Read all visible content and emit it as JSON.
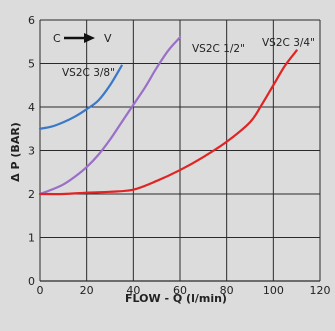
{
  "chart_data": {
    "type": "line",
    "title": "",
    "xlabel": "FLOW - Q (l/min)",
    "ylabel": "Δ P (BAR)",
    "xlim": [
      0,
      120
    ],
    "ylim": [
      0,
      6
    ],
    "xticks": [
      0,
      20,
      40,
      60,
      80,
      100,
      120
    ],
    "yticks": [
      0,
      1,
      2,
      3,
      4,
      5,
      6
    ],
    "grid": true,
    "annotation": {
      "from": "C",
      "to": "V"
    },
    "series": [
      {
        "name": "VS2C 3/8\"",
        "color": "#3a78c9",
        "points": [
          [
            0,
            3.5
          ],
          [
            5,
            3.55
          ],
          [
            10,
            3.65
          ],
          [
            15,
            3.78
          ],
          [
            20,
            3.95
          ],
          [
            25,
            4.15
          ],
          [
            30,
            4.5
          ],
          [
            35,
            4.95
          ]
        ]
      },
      {
        "name": "VS2C 1/2\"",
        "color": "#9a6fc8",
        "points": [
          [
            0,
            2.0
          ],
          [
            5,
            2.1
          ],
          [
            10,
            2.22
          ],
          [
            15,
            2.4
          ],
          [
            20,
            2.62
          ],
          [
            25,
            2.9
          ],
          [
            30,
            3.25
          ],
          [
            35,
            3.65
          ],
          [
            40,
            4.05
          ],
          [
            45,
            4.45
          ],
          [
            50,
            4.9
          ],
          [
            55,
            5.3
          ],
          [
            60,
            5.6
          ]
        ]
      },
      {
        "name": "VS2C 3/4\"",
        "color": "#e02424",
        "points": [
          [
            0,
            2.0
          ],
          [
            10,
            2.0
          ],
          [
            20,
            2.03
          ],
          [
            30,
            2.05
          ],
          [
            40,
            2.1
          ],
          [
            50,
            2.3
          ],
          [
            60,
            2.55
          ],
          [
            70,
            2.85
          ],
          [
            80,
            3.2
          ],
          [
            90,
            3.65
          ],
          [
            95,
            4.05
          ],
          [
            100,
            4.5
          ],
          [
            105,
            4.95
          ],
          [
            110,
            5.3
          ]
        ]
      }
    ]
  }
}
